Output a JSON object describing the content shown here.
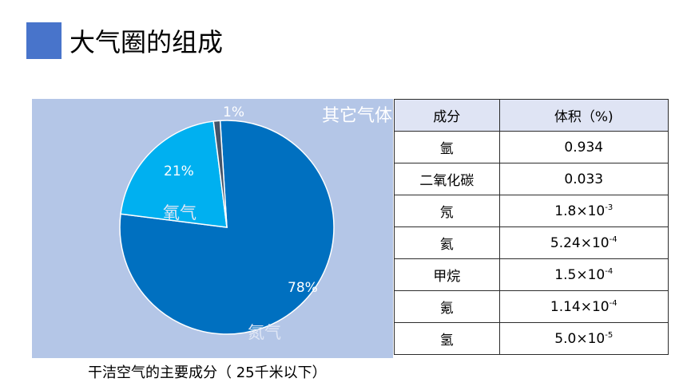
{
  "page": {
    "title": "大气圈的组成",
    "accent_color": "#4874cb"
  },
  "chart_data": {
    "type": "pie",
    "slices": [
      {
        "label": "氮气",
        "value": 78,
        "value_label": "78%",
        "color": "#0070c0"
      },
      {
        "label": "氧气",
        "value": 21,
        "value_label": "21%",
        "color": "#00b0f0"
      },
      {
        "label": "其它气体",
        "value": 1,
        "value_label": "1%",
        "color": "#44546a"
      }
    ],
    "background_color": "#b4c6e7",
    "caption": "干洁空气的主要成分（ 25千米以下）"
  },
  "table": {
    "headers": [
      "成分",
      "体积（%)"
    ],
    "rows": [
      {
        "name": "氩",
        "base": "0.934",
        "exp": ""
      },
      {
        "name": "二氧化碳",
        "base": "0.033",
        "exp": ""
      },
      {
        "name": "氖",
        "base": "1.8×10",
        "exp": "-3"
      },
      {
        "name": "氦",
        "base": "5.24×10",
        "exp": "-4"
      },
      {
        "name": "甲烷",
        "base": "1.5×10",
        "exp": "-4"
      },
      {
        "name": "氪",
        "base": "1.14×10",
        "exp": "-4"
      },
      {
        "name": "氢",
        "base": "5.0×10",
        "exp": "-5"
      }
    ]
  }
}
